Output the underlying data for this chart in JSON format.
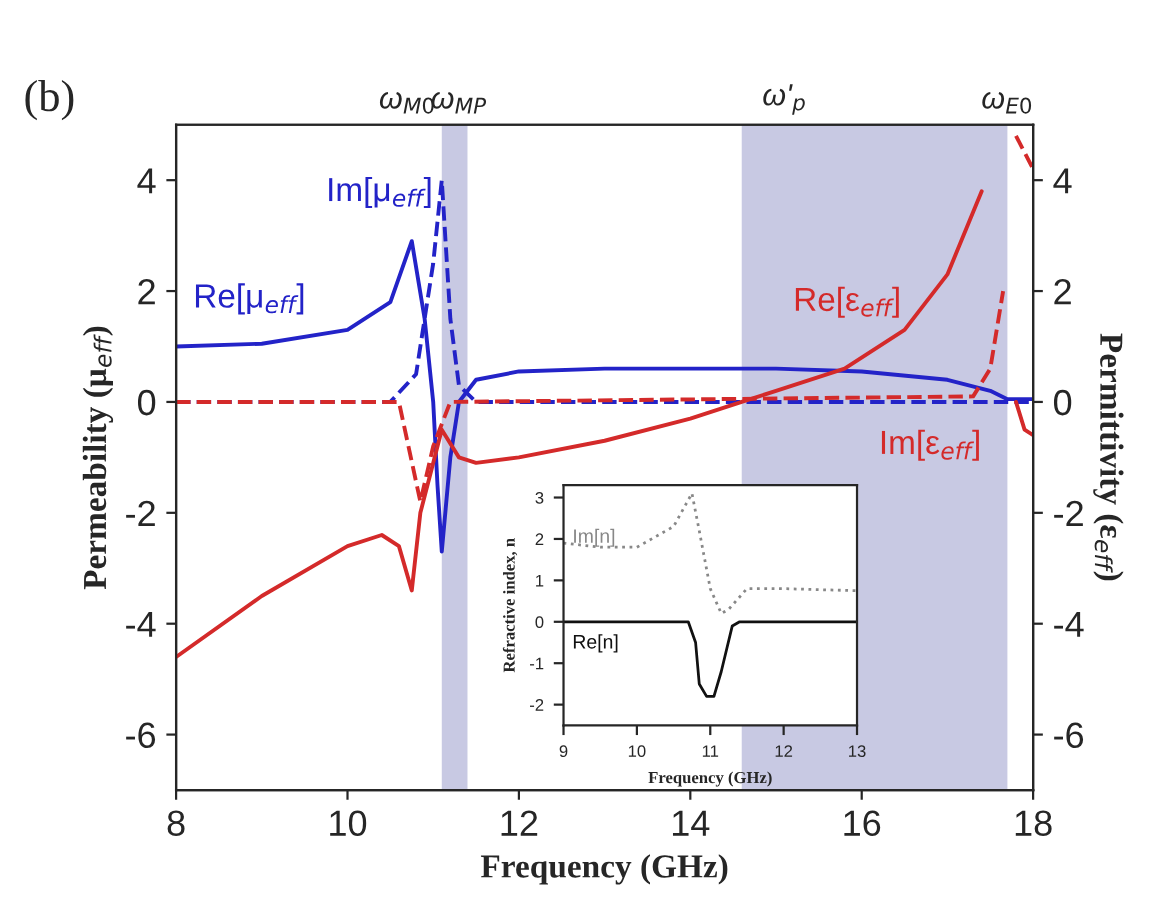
{
  "chart_data": [
    {
      "type": "line",
      "xlabel": "Frequency (GHz)",
      "ylabel": "Permeability (μ$_{eff}$)",
      "y2label": "Permittivity (ε$_{eff}$)",
      "annotations": [
        "(b)",
        "ω$_{M0}$",
        "ω$_{MP}$",
        "ω'$_{p}$",
        "ω$_{E0}$"
      ],
      "xlim": [
        8,
        18
      ],
      "xticks": [
        8,
        10,
        12,
        14,
        16,
        18
      ],
      "ylim": [
        -7,
        5
      ],
      "yticks": [
        -6,
        -4,
        -2,
        0,
        2,
        4
      ],
      "y2lim": [
        -7,
        5
      ],
      "y2ticks": [
        -6,
        -4,
        -2,
        0,
        2,
        4
      ],
      "grid": false,
      "legend": false,
      "bands": [
        {
          "axis": "x",
          "from": 11.1,
          "to": 11.4,
          "color": "#c8c9e3"
        },
        {
          "axis": "x",
          "from": 14.6,
          "to": 17.7,
          "color": "#c8c9e3"
        }
      ],
      "series": [
        {
          "name": "Re[μ$_{eff}$]",
          "color": "#2323c8",
          "line_style": "solid",
          "x": [
            8,
            9,
            10,
            10.5,
            10.75,
            10.9,
            11.0,
            11.05,
            11.1,
            11.2,
            11.3,
            11.5,
            12,
            13,
            14,
            15,
            16,
            17,
            17.5,
            17.7,
            18
          ],
          "values": [
            1.0,
            1.05,
            1.3,
            1.8,
            2.9,
            1.5,
            0,
            -1.5,
            -2.7,
            -1.0,
            0,
            0.4,
            0.55,
            0.6,
            0.6,
            0.6,
            0.55,
            0.4,
            0.2,
            0.05,
            0.05
          ]
        },
        {
          "name": "Im[μ$_{eff}$]",
          "color": "#2323c8",
          "line_style": "dashed",
          "x": [
            8,
            10.5,
            10.8,
            11.0,
            11.1,
            11.2,
            11.3,
            11.5,
            18
          ],
          "values": [
            0,
            0,
            0.5,
            2.5,
            4.0,
            1.5,
            0.3,
            0,
            0
          ]
        },
        {
          "name": "Re[ε$_{eff}$]",
          "color": "#d42a2a",
          "line_style": "solid",
          "axis": "y2",
          "x": [
            8,
            9,
            10,
            10.4,
            10.6,
            10.75,
            10.85,
            11.1,
            11.3,
            11.5,
            12,
            13,
            14,
            14.6,
            15,
            15.8,
            16.5,
            17,
            17.4,
            17.6,
            17.75,
            17.8,
            17.9,
            18
          ],
          "values": [
            -4.6,
            -3.5,
            -2.6,
            -2.4,
            -2.6,
            -3.4,
            -2.0,
            -0.5,
            -1.0,
            -1.1,
            -1.0,
            -0.7,
            -0.3,
            0,
            0.2,
            0.6,
            1.3,
            2.3,
            3.8,
            null,
            null,
            0,
            -0.5,
            -0.6
          ]
        },
        {
          "name": "Im[ε$_{eff}$]",
          "color": "#d42a2a",
          "line_style": "dashed",
          "axis": "y2",
          "x": [
            8,
            10.6,
            10.85,
            11.0,
            11.2,
            17.3,
            17.5,
            17.65,
            17.72,
            17.8,
            18
          ],
          "values": [
            0,
            0,
            -1.8,
            -0.8,
            0,
            0.1,
            0.6,
            2,
            null,
            4.8,
            4.2
          ]
        }
      ]
    },
    {
      "type": "line",
      "xlabel": "Frequency (GHz)",
      "ylabel": "Refractive index, n",
      "xlim": [
        9,
        13
      ],
      "xticks": [
        9,
        10,
        11,
        12,
        13
      ],
      "ylim": [
        -2.5,
        3.3
      ],
      "yticks": [
        -2,
        -1,
        0,
        1,
        2,
        3
      ],
      "grid": false,
      "legend": false,
      "series": [
        {
          "name": "Im[n]",
          "color": "#888888",
          "line_style": "dotted",
          "x": [
            9,
            9.5,
            10,
            10.5,
            10.75,
            10.85,
            11,
            11.15,
            11.25,
            11.5,
            12,
            13
          ],
          "values": [
            1.9,
            1.8,
            1.8,
            2.3,
            3.1,
            2.2,
            0.8,
            0.2,
            0.3,
            0.8,
            0.8,
            0.75
          ]
        },
        {
          "name": "Re[n]",
          "color": "#111111",
          "line_style": "solid",
          "x": [
            9,
            10.7,
            10.8,
            10.85,
            10.95,
            11.05,
            11.15,
            11.3,
            11.4,
            13
          ],
          "values": [
            0,
            0,
            -0.5,
            -1.5,
            -1.8,
            -1.8,
            -1.2,
            -0.1,
            0,
            0
          ]
        }
      ]
    }
  ]
}
